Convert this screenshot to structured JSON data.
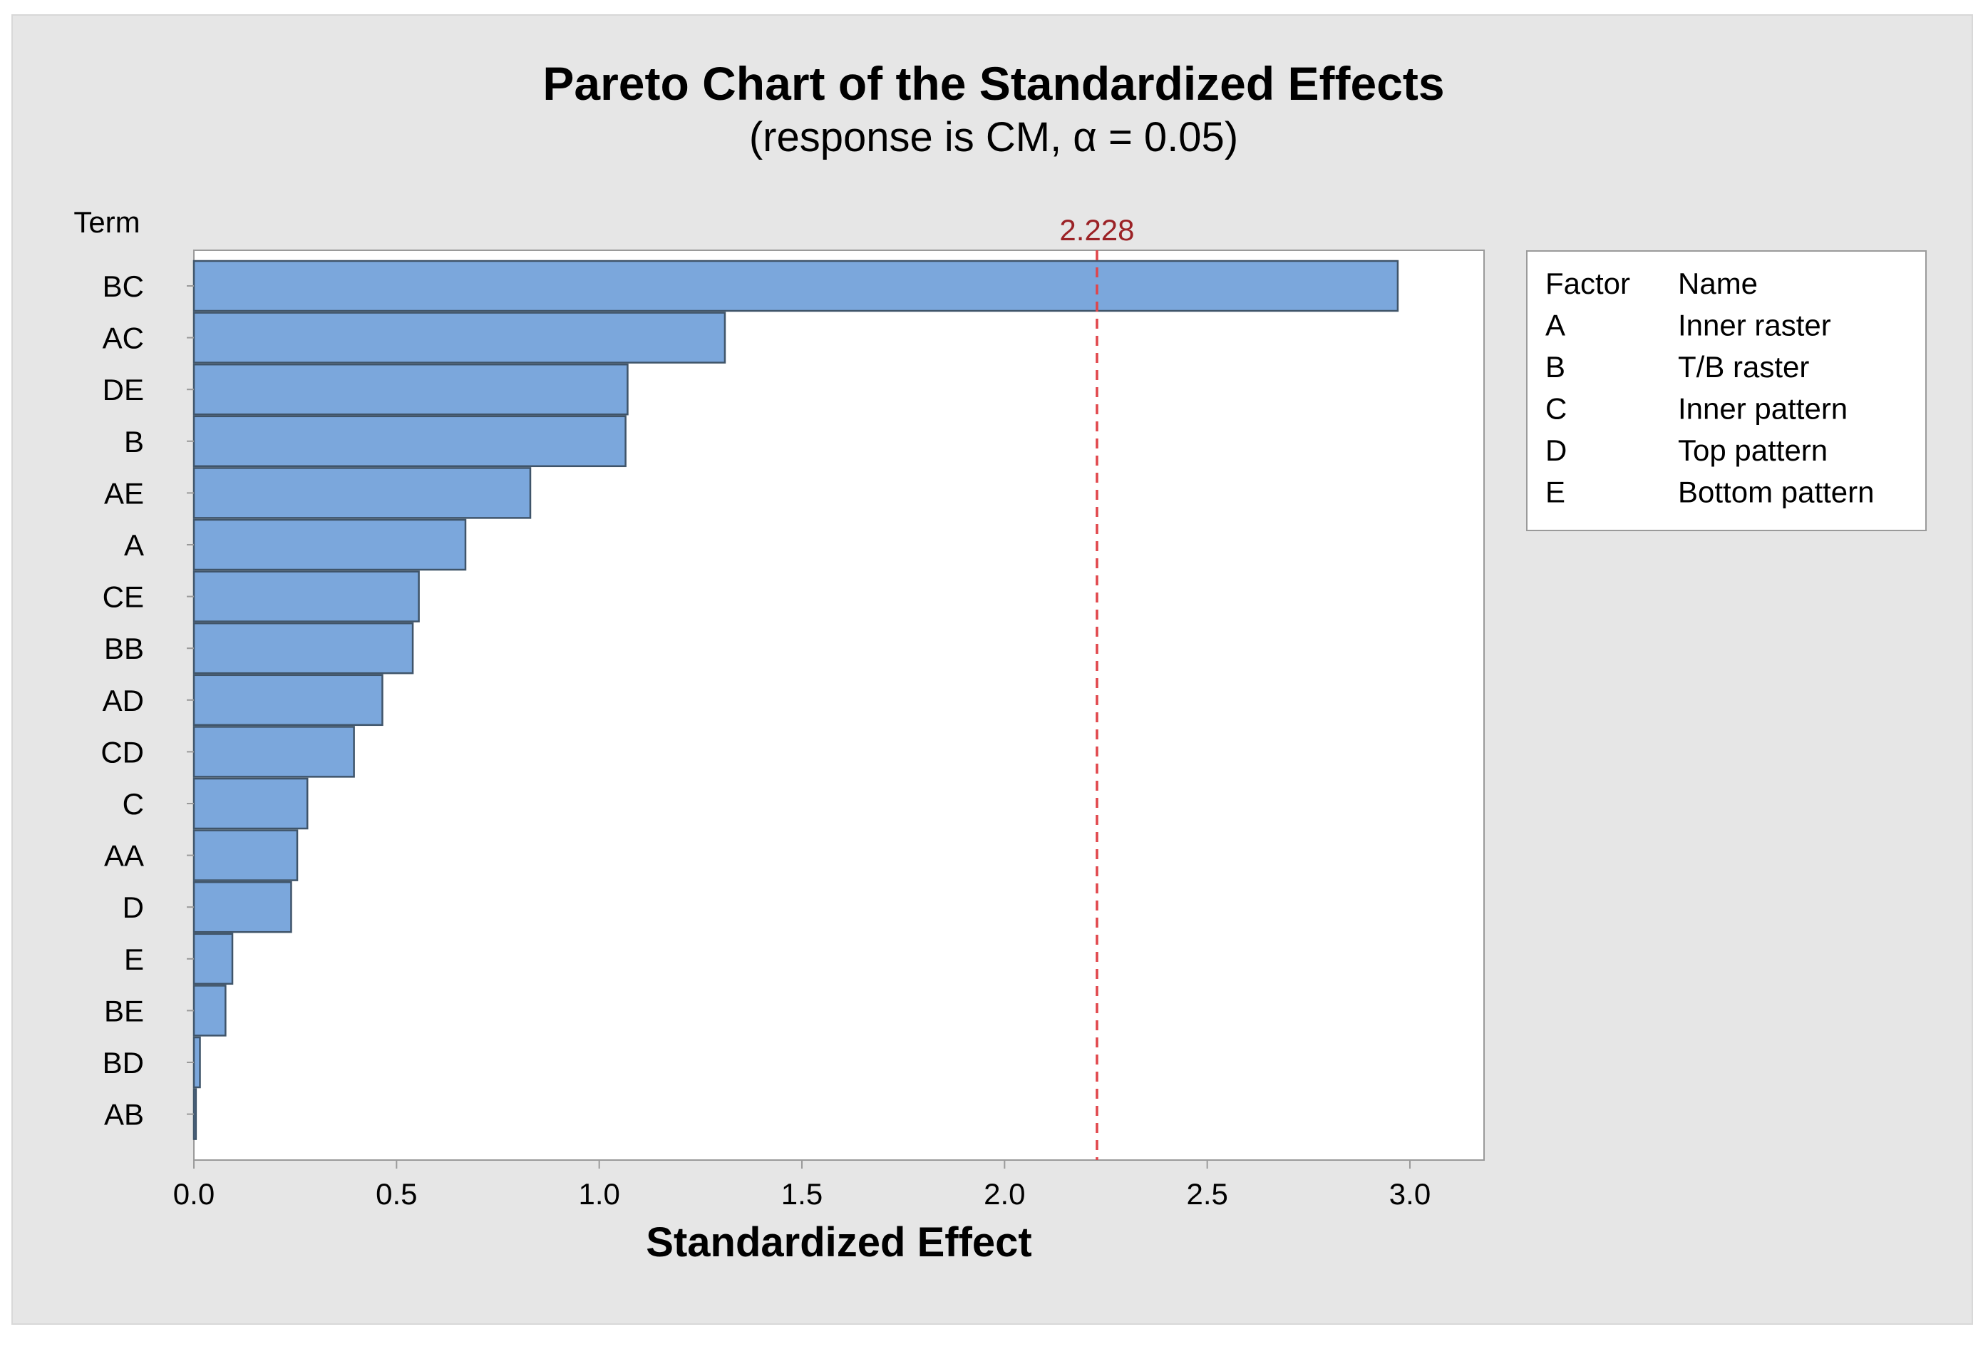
{
  "chart_data": {
    "type": "bar",
    "orientation": "horizontal",
    "title": "Pareto Chart of the Standardized Effects",
    "subtitle": "(response is CM, α = 0.05)",
    "xlabel": "Standardized Effect",
    "ylabel": "Term",
    "xlim": [
      0,
      3.15
    ],
    "xticks": [
      "0.0",
      "0.5",
      "1.0",
      "1.5",
      "2.0",
      "2.5",
      "3.0"
    ],
    "categories": [
      "BC",
      "AC",
      "DE",
      "B",
      "AE",
      "A",
      "CE",
      "BB",
      "AD",
      "CD",
      "C",
      "AA",
      "D",
      "E",
      "BE",
      "BD",
      "AB"
    ],
    "values": [
      2.97,
      1.31,
      1.07,
      1.065,
      0.83,
      0.67,
      0.555,
      0.54,
      0.465,
      0.395,
      0.28,
      0.255,
      0.24,
      0.095,
      0.078,
      0.015,
      0.005
    ],
    "reference_line": {
      "value": 2.228,
      "label": "2.228"
    },
    "grid": false,
    "colors": {
      "bar_fill": "#7ba7dc",
      "bar_edge": "#3f5469",
      "ref_line": "#e0454a",
      "ref_label": "#9b2226",
      "panel_bg": "#e6e6e6",
      "plot_bg": "#ffffff"
    },
    "legend": {
      "placement": "right-top",
      "header": [
        "Factor",
        "Name"
      ],
      "rows": [
        [
          "A",
          "Inner raster"
        ],
        [
          "B",
          "T/B raster"
        ],
        [
          "C",
          "Inner pattern"
        ],
        [
          "D",
          "Top pattern"
        ],
        [
          "E",
          "Bottom pattern"
        ]
      ]
    }
  }
}
